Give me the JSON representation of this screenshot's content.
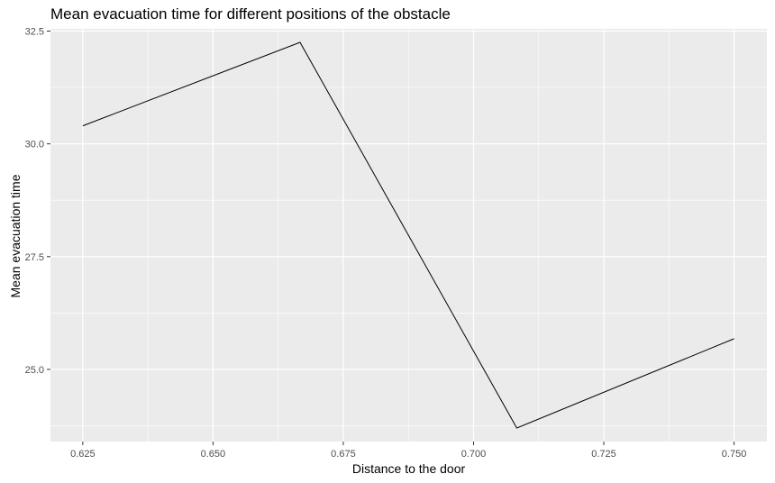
{
  "chart_data": {
    "type": "line",
    "title": "Mean evacuation time for different positions of the obstacle",
    "xlabel": "Distance to the door",
    "ylabel": "Mean evacuation time",
    "x": [
      0.625,
      0.6667,
      0.7083,
      0.75
    ],
    "series": [
      {
        "values": [
          30.4,
          32.25,
          23.7,
          25.68
        ],
        "color": "#000000"
      }
    ],
    "xlim": [
      0.6188,
      0.7563
    ],
    "ylim": [
      23.4,
      32.55
    ],
    "x_ticks": [
      "0.625",
      "0.650",
      "0.675",
      "0.700",
      "0.725",
      "0.750"
    ],
    "y_ticks": [
      "25.0",
      "27.5",
      "30.0",
      "32.5"
    ],
    "grid": true,
    "panel_background": "#ebebeb",
    "grid_color": "#ffffff"
  }
}
